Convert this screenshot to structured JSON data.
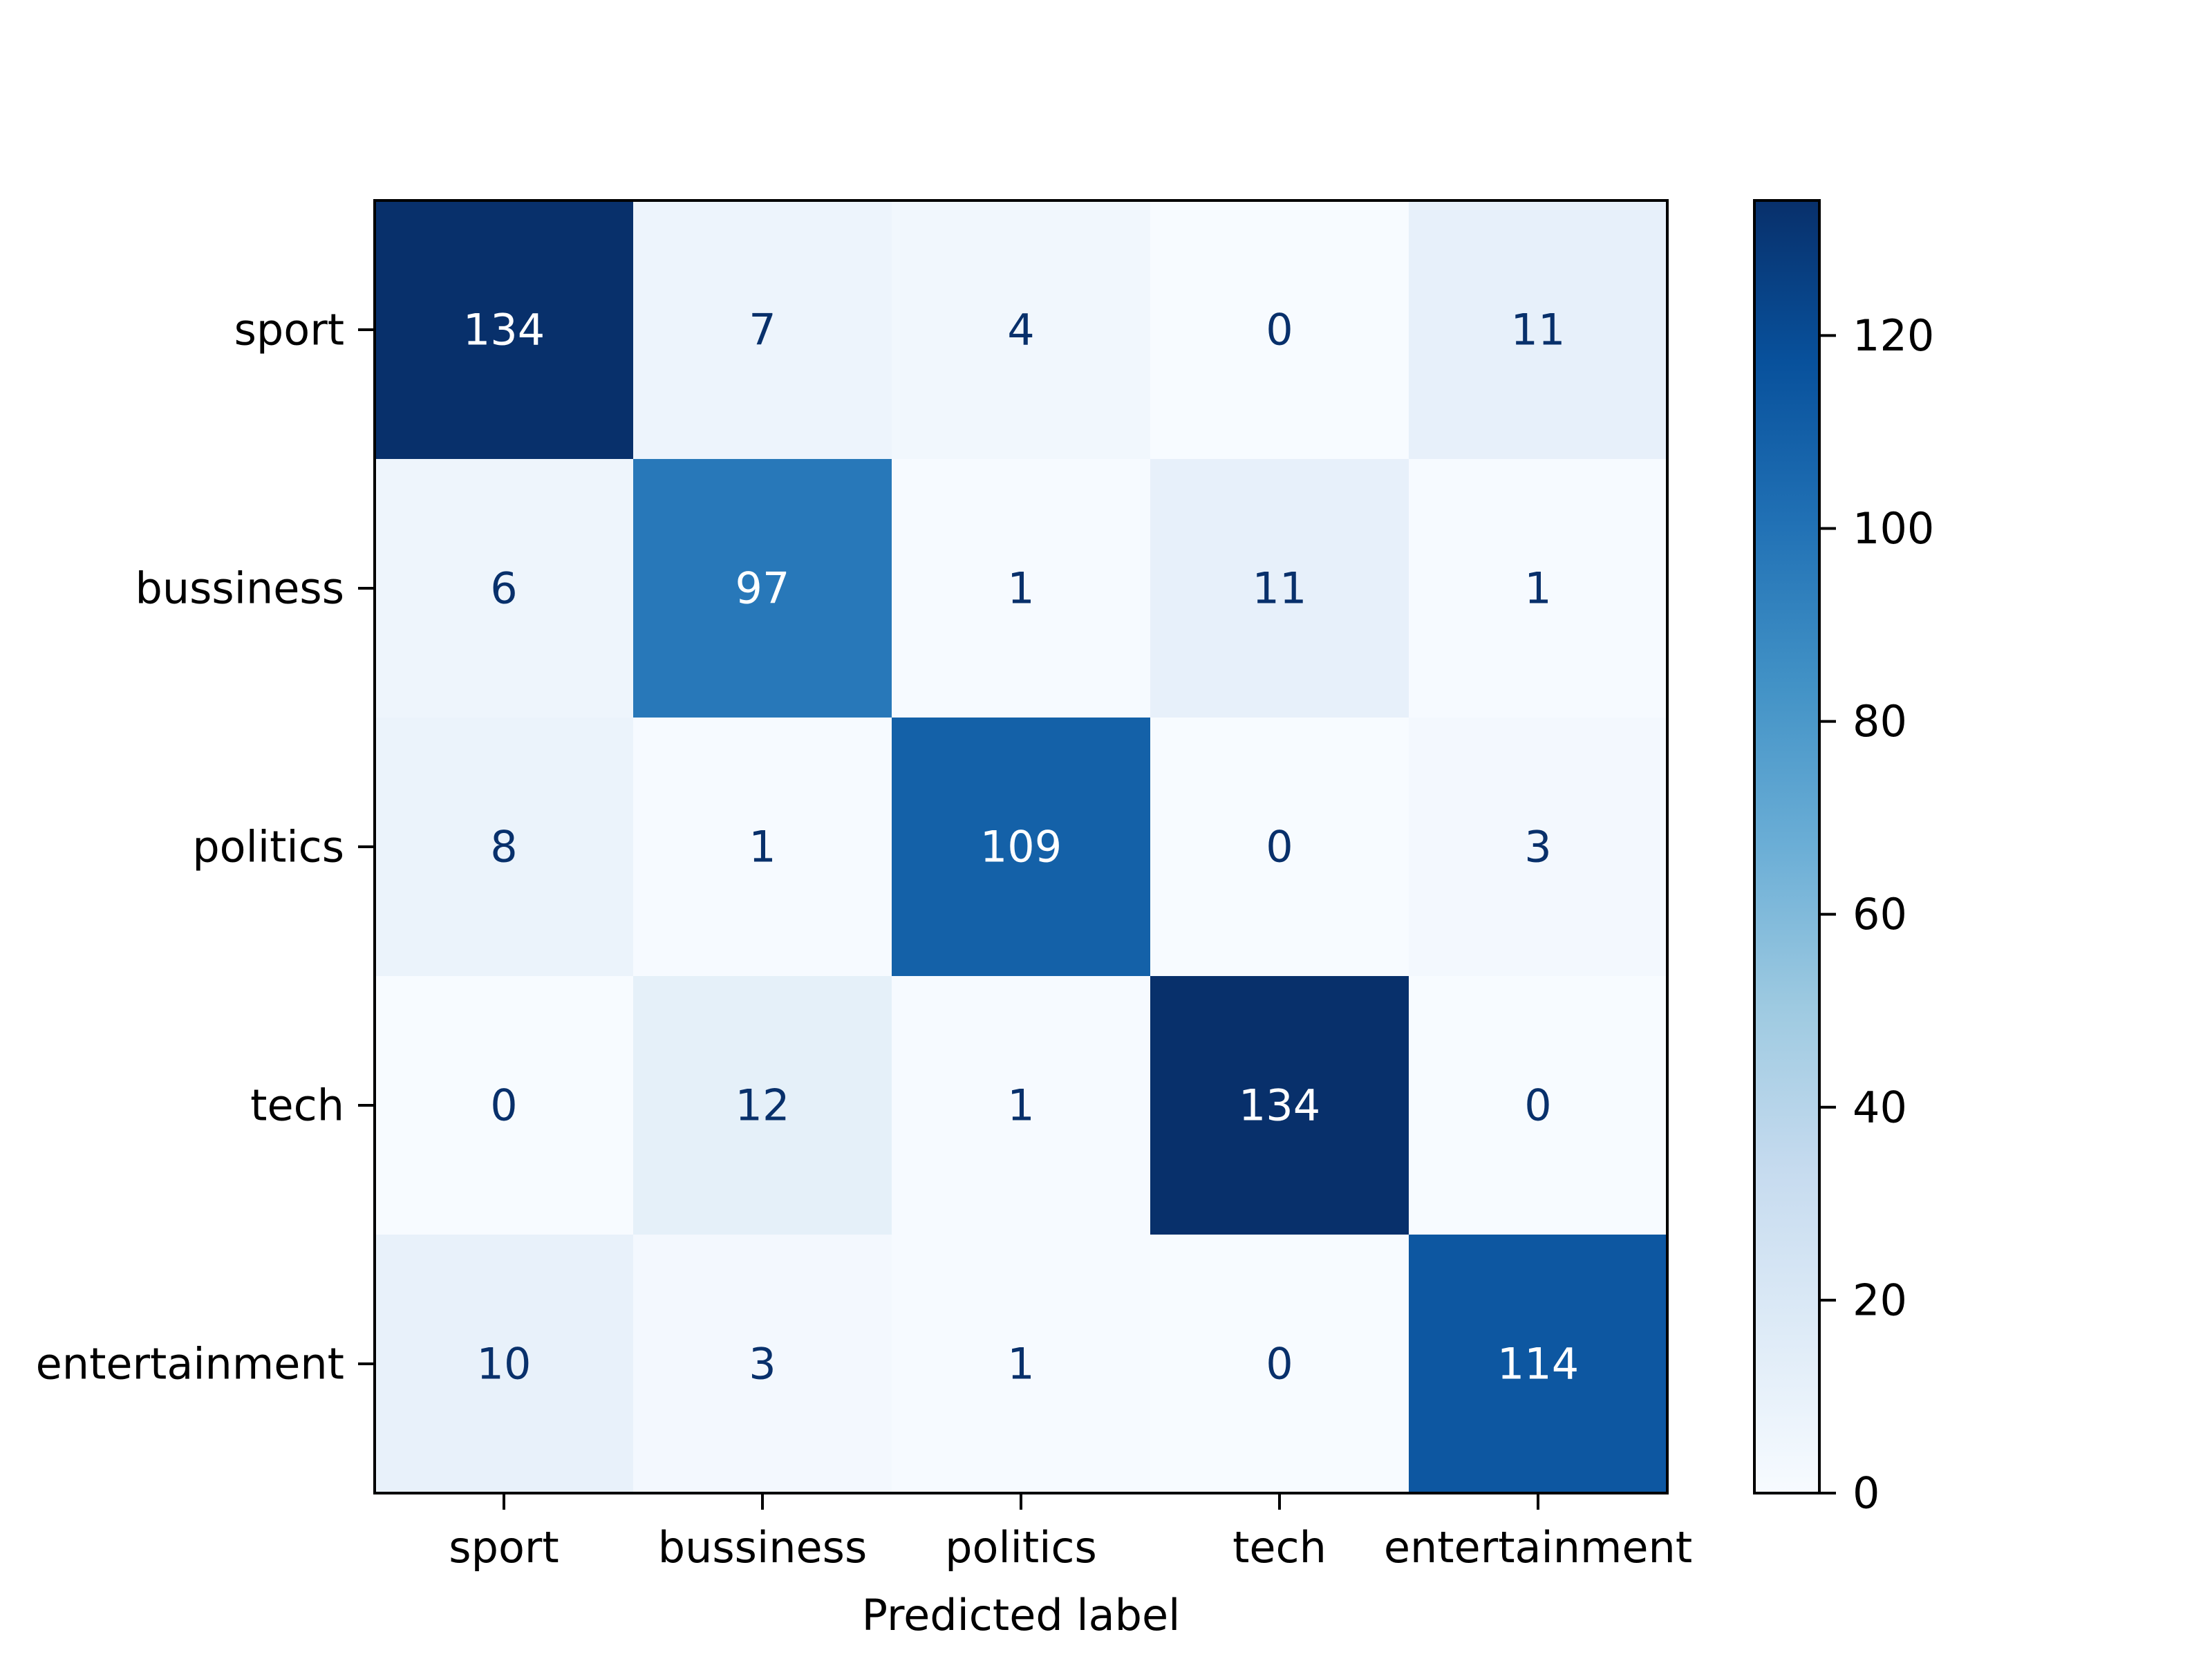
{
  "chart_data": {
    "type": "heatmap",
    "title": "",
    "xlabel": "Predicted label",
    "ylabel": "",
    "x_categories": [
      "sport",
      "bussiness",
      "politics",
      "tech",
      "entertainment"
    ],
    "y_categories": [
      "sport",
      "bussiness",
      "politics",
      "tech",
      "entertainment"
    ],
    "matrix": [
      [
        134,
        7,
        4,
        0,
        11
      ],
      [
        6,
        97,
        1,
        11,
        1
      ],
      [
        8,
        1,
        109,
        0,
        3
      ],
      [
        0,
        12,
        1,
        134,
        0
      ],
      [
        10,
        3,
        1,
        0,
        114
      ]
    ],
    "colormap": "Blues",
    "color_range": [
      0,
      134
    ],
    "colorbar_ticks": [
      0,
      20,
      40,
      60,
      80,
      100,
      120
    ],
    "colorbar_tick_labels": [
      "0",
      "20",
      "40",
      "60",
      "80",
      "100",
      "120"
    ],
    "text_colors": {
      "dark_cell": "#ffffff",
      "light_cell": "#08306b"
    },
    "grid": false,
    "legend": "colorbar-right"
  }
}
